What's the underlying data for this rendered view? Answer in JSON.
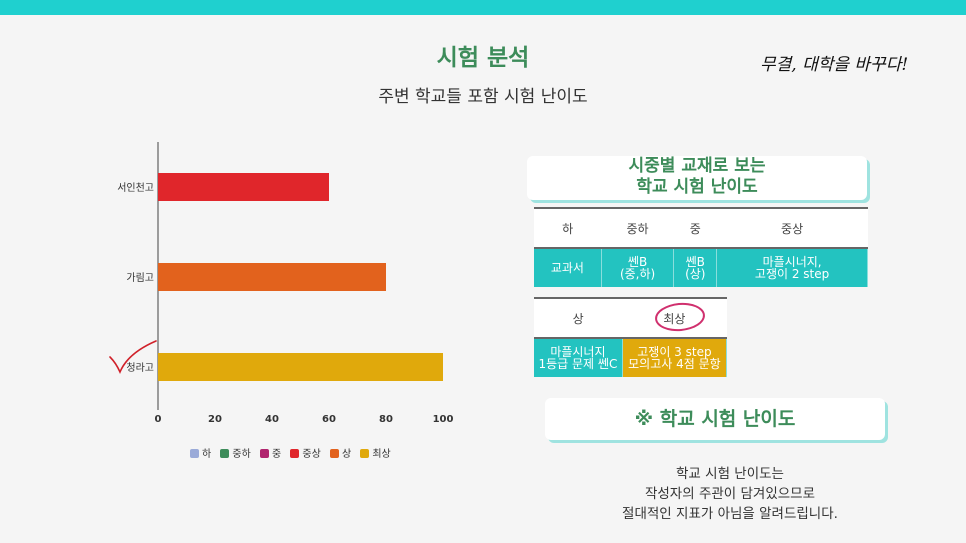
{
  "header": {
    "title": "시험 분석",
    "subtitle": "주변 학교들 포함 시험 난이도",
    "slogan": "무결, 대학을 바꾸다!"
  },
  "chart_data": {
    "type": "bar",
    "orientation": "horizontal",
    "categories": [
      "서인천고",
      "가림고",
      "청라고"
    ],
    "values": [
      60,
      80,
      100
    ],
    "bar_colors": [
      "#e0262b",
      "#e2621d",
      "#e0a90c"
    ],
    "xticks": [
      "0",
      "20",
      "40",
      "60",
      "80",
      "100"
    ],
    "xlim": [
      0,
      100
    ],
    "grid": false,
    "legend_position": "bottom",
    "legend": [
      {
        "label": "하",
        "color": "#9aaad8"
      },
      {
        "label": "중하",
        "color": "#3d8c5a"
      },
      {
        "label": "중",
        "color": "#b0246e"
      },
      {
        "label": "중상",
        "color": "#e0262b"
      },
      {
        "label": "상",
        "color": "#e2621d"
      },
      {
        "label": "최상",
        "color": "#e0a90c"
      }
    ],
    "checked_category": "청라고"
  },
  "card_top": {
    "line1": "시중별 교재로 보는",
    "line2": "학교 시험 난이도"
  },
  "table1": {
    "headers": [
      "하",
      "중하",
      "중",
      "중상"
    ],
    "cells": [
      {
        "l1": "교과서",
        "l2": ""
      },
      {
        "l1": "쎈B",
        "l2": "(중,하)"
      },
      {
        "l1": "쎈B",
        "l2": "(상)"
      },
      {
        "l1": "마플시너지,",
        "l2": "고쟁이 2 step"
      }
    ]
  },
  "table2": {
    "headers": [
      "상",
      "최상"
    ],
    "cells": [
      {
        "l1": "마플시너지",
        "l2": "1등급 문제 쎈C"
      },
      {
        "l1": "고쟁이 3 step",
        "l2": "모의고사 4점 문항"
      }
    ]
  },
  "card_bottom": {
    "label": "※ 학교 시험 난이도"
  },
  "note": {
    "line1": "학교 시험 난이도는",
    "line2": "작성자의 주관이 담겨있으므로",
    "line3": "절대적인 지표가 아님을 알려드립니다."
  }
}
